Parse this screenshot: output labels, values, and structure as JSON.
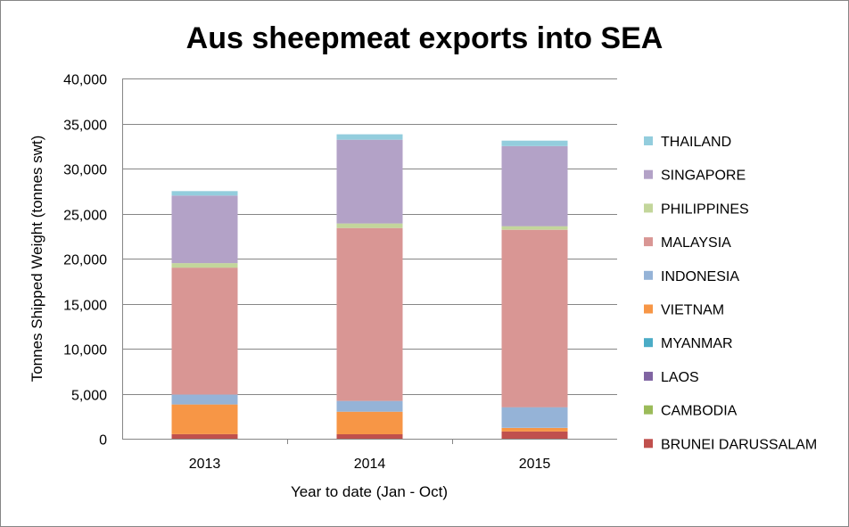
{
  "chart_data": {
    "type": "bar",
    "stacked": true,
    "title": "Aus sheepmeat exports into SEA",
    "xlabel": "Year to date (Jan - Oct)",
    "ylabel": "Tonnes Shipped Weight (tonnes swt)",
    "ylim": [
      0,
      40000
    ],
    "yticks": [
      0,
      5000,
      10000,
      15000,
      20000,
      25000,
      30000,
      35000,
      40000
    ],
    "ytick_labels": [
      "0",
      "5,000",
      "10,000",
      "15,000",
      "20,000",
      "25,000",
      "30,000",
      "35,000",
      "40,000"
    ],
    "grid": "horizontal",
    "legend_position": "right",
    "categories": [
      "2013",
      "2014",
      "2015"
    ],
    "series": [
      {
        "name": "BRUNEI DARUSSALAM",
        "color": "#c0504d",
        "values": [
          500,
          500,
          800
        ]
      },
      {
        "name": "CAMBODIA",
        "color": "#9bbb59",
        "values": [
          0,
          0,
          0
        ]
      },
      {
        "name": "LAOS",
        "color": "#8064a2",
        "values": [
          0,
          0,
          0
        ]
      },
      {
        "name": "MYANMAR",
        "color": "#4bacc6",
        "values": [
          0,
          0,
          0
        ]
      },
      {
        "name": "VIETNAM",
        "color": "#f79646",
        "values": [
          3300,
          2500,
          400
        ]
      },
      {
        "name": "INDONESIA",
        "color": "#95b3d7",
        "values": [
          1100,
          1200,
          2300
        ]
      },
      {
        "name": "MALAYSIA",
        "color": "#d99694",
        "values": [
          14100,
          19200,
          19700
        ]
      },
      {
        "name": "PHILIPPINES",
        "color": "#c3d69b",
        "values": [
          500,
          500,
          400
        ]
      },
      {
        "name": "SINGAPORE",
        "color": "#b3a2c7",
        "values": [
          7500,
          9300,
          8900
        ]
      },
      {
        "name": "THAILAND",
        "color": "#93cddd",
        "values": [
          500,
          600,
          600
        ]
      }
    ]
  }
}
